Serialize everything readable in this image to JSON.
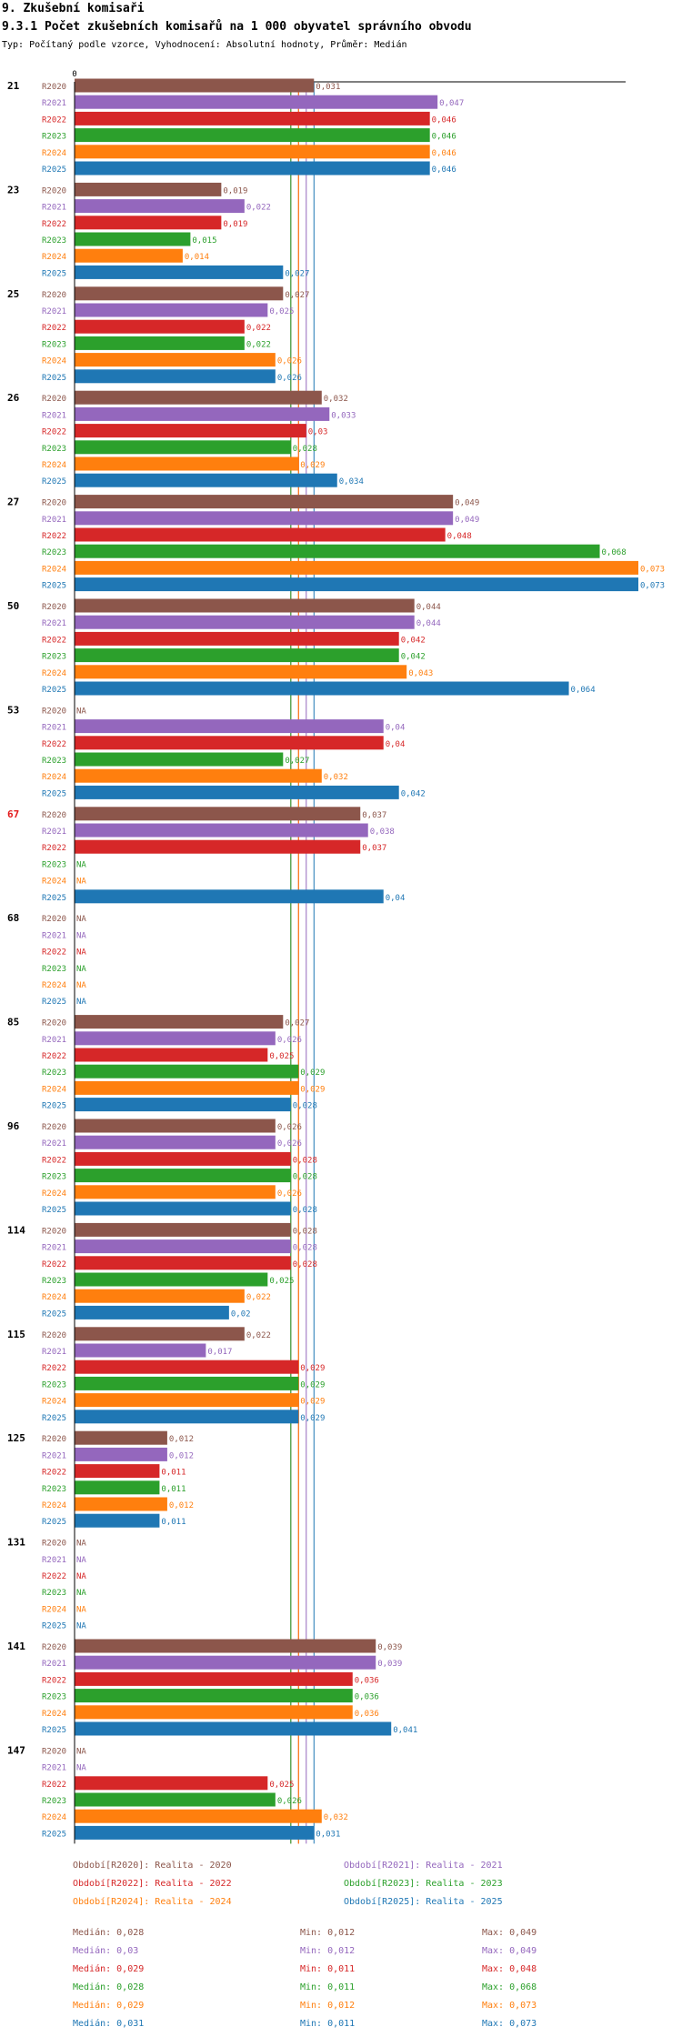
{
  "header": {
    "section": "9. Zkušební komisaři",
    "title": "9.3.1 Počet zkušebních komisařů na 1 000 obyvatel správního obvodu",
    "subtitle": "Typ: Počítaný podle vzorce, Vyhodnocení: Absolutní hodnoty, Průměr: Medián"
  },
  "chart_data": {
    "type": "bar",
    "orientation": "horizontal",
    "axis_zero_label": "0",
    "xlim": [
      0,
      0.074
    ],
    "na_label": "NA",
    "series": [
      {
        "key": "R2020",
        "color": "#8c564b"
      },
      {
        "key": "R2021",
        "color": "#9467bd"
      },
      {
        "key": "R2022",
        "color": "#d62728"
      },
      {
        "key": "R2023",
        "color": "#2ca02c"
      },
      {
        "key": "R2024",
        "color": "#ff7f0e"
      },
      {
        "key": "R2025",
        "color": "#1f77b4"
      }
    ],
    "groups": [
      {
        "label": "21",
        "highlight": false,
        "values": [
          "0,031",
          "0,047",
          "0,046",
          "0,046",
          "0,046",
          "0,046"
        ]
      },
      {
        "label": "23",
        "highlight": false,
        "values": [
          "0,019",
          "0,022",
          "0,019",
          "0,015",
          "0,014",
          "0,027"
        ]
      },
      {
        "label": "25",
        "highlight": false,
        "values": [
          "0,027",
          "0,025",
          "0,022",
          "0,022",
          "0,026",
          "0,026"
        ]
      },
      {
        "label": "26",
        "highlight": false,
        "values": [
          "0,032",
          "0,033",
          "0,03",
          "0,028",
          "0,029",
          "0,034"
        ]
      },
      {
        "label": "27",
        "highlight": false,
        "values": [
          "0,049",
          "0,049",
          "0,048",
          "0,068",
          "0,073",
          "0,073"
        ]
      },
      {
        "label": "50",
        "highlight": false,
        "values": [
          "0,044",
          "0,044",
          "0,042",
          "0,042",
          "0,043",
          "0,064"
        ]
      },
      {
        "label": "53",
        "highlight": false,
        "values": [
          "NA",
          "0,04",
          "0,04",
          "0,027",
          "0,032",
          "0,042"
        ]
      },
      {
        "label": "67",
        "highlight": true,
        "values": [
          "0,037",
          "0,038",
          "0,037",
          "NA",
          "NA",
          "0,04"
        ]
      },
      {
        "label": "68",
        "highlight": false,
        "values": [
          "NA",
          "NA",
          "NA",
          "NA",
          "NA",
          "NA"
        ]
      },
      {
        "label": "85",
        "highlight": false,
        "values": [
          "0,027",
          "0,026",
          "0,025",
          "0,029",
          "0,029",
          "0,028"
        ]
      },
      {
        "label": "96",
        "highlight": false,
        "values": [
          "0,026",
          "0,026",
          "0,028",
          "0,028",
          "0,026",
          "0,028"
        ]
      },
      {
        "label": "114",
        "highlight": false,
        "values": [
          "0,028",
          "0,028",
          "0,028",
          "0,025",
          "0,022",
          "0,02"
        ]
      },
      {
        "label": "115",
        "highlight": false,
        "values": [
          "0,022",
          "0,017",
          "0,029",
          "0,029",
          "0,029",
          "0,029"
        ]
      },
      {
        "label": "125",
        "highlight": false,
        "values": [
          "0,012",
          "0,012",
          "0,011",
          "0,011",
          "0,012",
          "0,011"
        ]
      },
      {
        "label": "131",
        "highlight": false,
        "values": [
          "NA",
          "NA",
          "NA",
          "NA",
          "NA",
          "NA"
        ]
      },
      {
        "label": "141",
        "highlight": false,
        "values": [
          "0,039",
          "0,039",
          "0,036",
          "0,036",
          "0,036",
          "0,041"
        ]
      },
      {
        "label": "147",
        "highlight": false,
        "values": [
          "NA",
          "NA",
          "0,025",
          "0,026",
          "0,032",
          "0,031"
        ]
      }
    ],
    "median_lines": [
      0.028,
      0.03,
      0.029,
      0.028,
      0.029,
      0.031
    ]
  },
  "legend": {
    "periods": [
      "Období[R2020]: Realita - 2020",
      "Období[R2021]: Realita - 2021",
      "Období[R2022]: Realita - 2022",
      "Období[R2023]: Realita - 2023",
      "Období[R2024]: Realita - 2024",
      "Období[R2025]: Realita - 2025"
    ],
    "stats": [
      {
        "median": "Medián: 0,028",
        "min": "Min: 0,012",
        "max": "Max: 0,049"
      },
      {
        "median": "Medián: 0,03",
        "min": "Min: 0,012",
        "max": "Max: 0,049"
      },
      {
        "median": "Medián: 0,029",
        "min": "Min: 0,011",
        "max": "Max: 0,048"
      },
      {
        "median": "Medián: 0,028",
        "min": "Min: 0,011",
        "max": "Max: 0,068"
      },
      {
        "median": "Medián: 0,029",
        "min": "Min: 0,012",
        "max": "Max: 0,073"
      },
      {
        "median": "Medián: 0,031",
        "min": "Min: 0,011",
        "max": "Max: 0,073"
      }
    ]
  }
}
